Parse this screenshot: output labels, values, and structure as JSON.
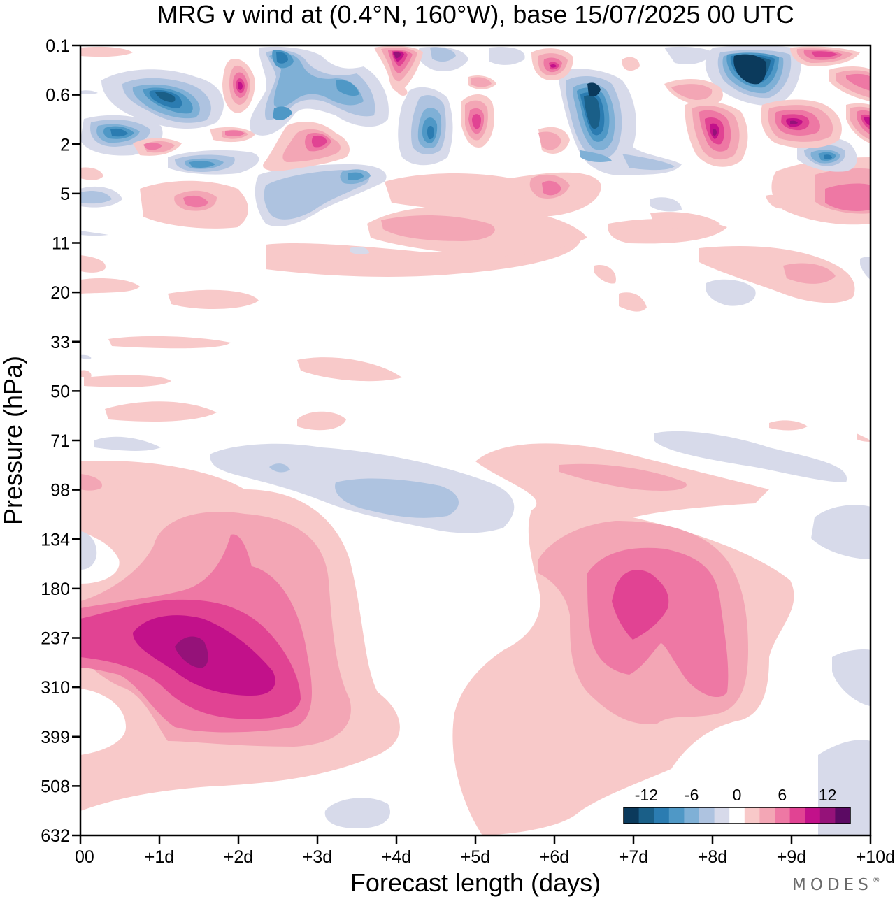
{
  "title": "MRG v wind at (0.4°N, 160°W),  base 15/07/2025  00 UTC",
  "brand": "MODES",
  "brand_mark": "®",
  "chart_data": {
    "type": "heatmap",
    "title": "MRG v wind at (0.4°N, 160°W),  base 15/07/2025  00 UTC",
    "xlabel": "Forecast length (days)",
    "ylabel": "Pressure (hPa)",
    "x_ticks": [
      "00",
      "+1d",
      "+2d",
      "+3d",
      "+4d",
      "+5d",
      "+6d",
      "+7d",
      "+8d",
      "+9d",
      "+10d"
    ],
    "xlim": [
      0,
      10
    ],
    "y_ticks": [
      "0.1",
      "0.6",
      "2",
      "5",
      "11",
      "20",
      "33",
      "50",
      "71",
      "98",
      "134",
      "180",
      "237",
      "310",
      "399",
      "508",
      "632"
    ],
    "y_scale": "log-pressure, increasing downward",
    "colorbar": {
      "ticks": [
        "-12",
        "-6",
        "0",
        "6",
        "12"
      ],
      "levels": [
        -15,
        -13,
        -11,
        -9,
        -7,
        -5,
        -3,
        -1,
        1,
        3,
        5,
        7,
        9,
        11,
        13,
        15
      ],
      "colors": [
        "#0b3a5c",
        "#1a5f88",
        "#2b7cb1",
        "#4f98c6",
        "#7fb0d6",
        "#aec3e0",
        "#d7daea",
        "#ffffff",
        "#f8c9c9",
        "#f3a6b5",
        "#ee78a4",
        "#e14393",
        "#c2118a",
        "#951279",
        "#5b0a63"
      ]
    },
    "features": [
      {
        "x_days": [
          0.7,
          3.8
        ],
        "pressure_hPa": [
          134,
          450
        ],
        "peak_ms": 15,
        "peak_x": 1.5,
        "peak_p": 250,
        "sign": "positive"
      },
      {
        "x_days": [
          4.8,
          9.0
        ],
        "pressure_hPa": [
          110,
          632
        ],
        "peak_ms": 11,
        "peak_x": 7.0,
        "peak_p": 200,
        "sign": "positive"
      },
      {
        "x_days": [
          3.0,
          5.5
        ],
        "pressure_hPa": [
          80,
          120
        ],
        "peak_ms": -5,
        "peak_x": 4.3,
        "peak_p": 100,
        "sign": "negative"
      },
      {
        "x_days": [
          6.0,
          7.0
        ],
        "pressure_hPa": [
          0.3,
          3
        ],
        "peak_ms": -13,
        "peak_x": 6.5,
        "peak_p": 0.6,
        "sign": "negative"
      },
      {
        "x_days": [
          7.9,
          9.0
        ],
        "pressure_hPa": [
          0.1,
          0.8
        ],
        "peak_ms": -15,
        "peak_x": 8.5,
        "peak_p": 0.3,
        "sign": "negative"
      },
      {
        "x_days": [
          8.3,
          10.0
        ],
        "pressure_hPa": [
          0.8,
          6
        ],
        "peak_ms": 11,
        "peak_x": 9.0,
        "peak_p": 1.5,
        "sign": "positive"
      }
    ]
  }
}
